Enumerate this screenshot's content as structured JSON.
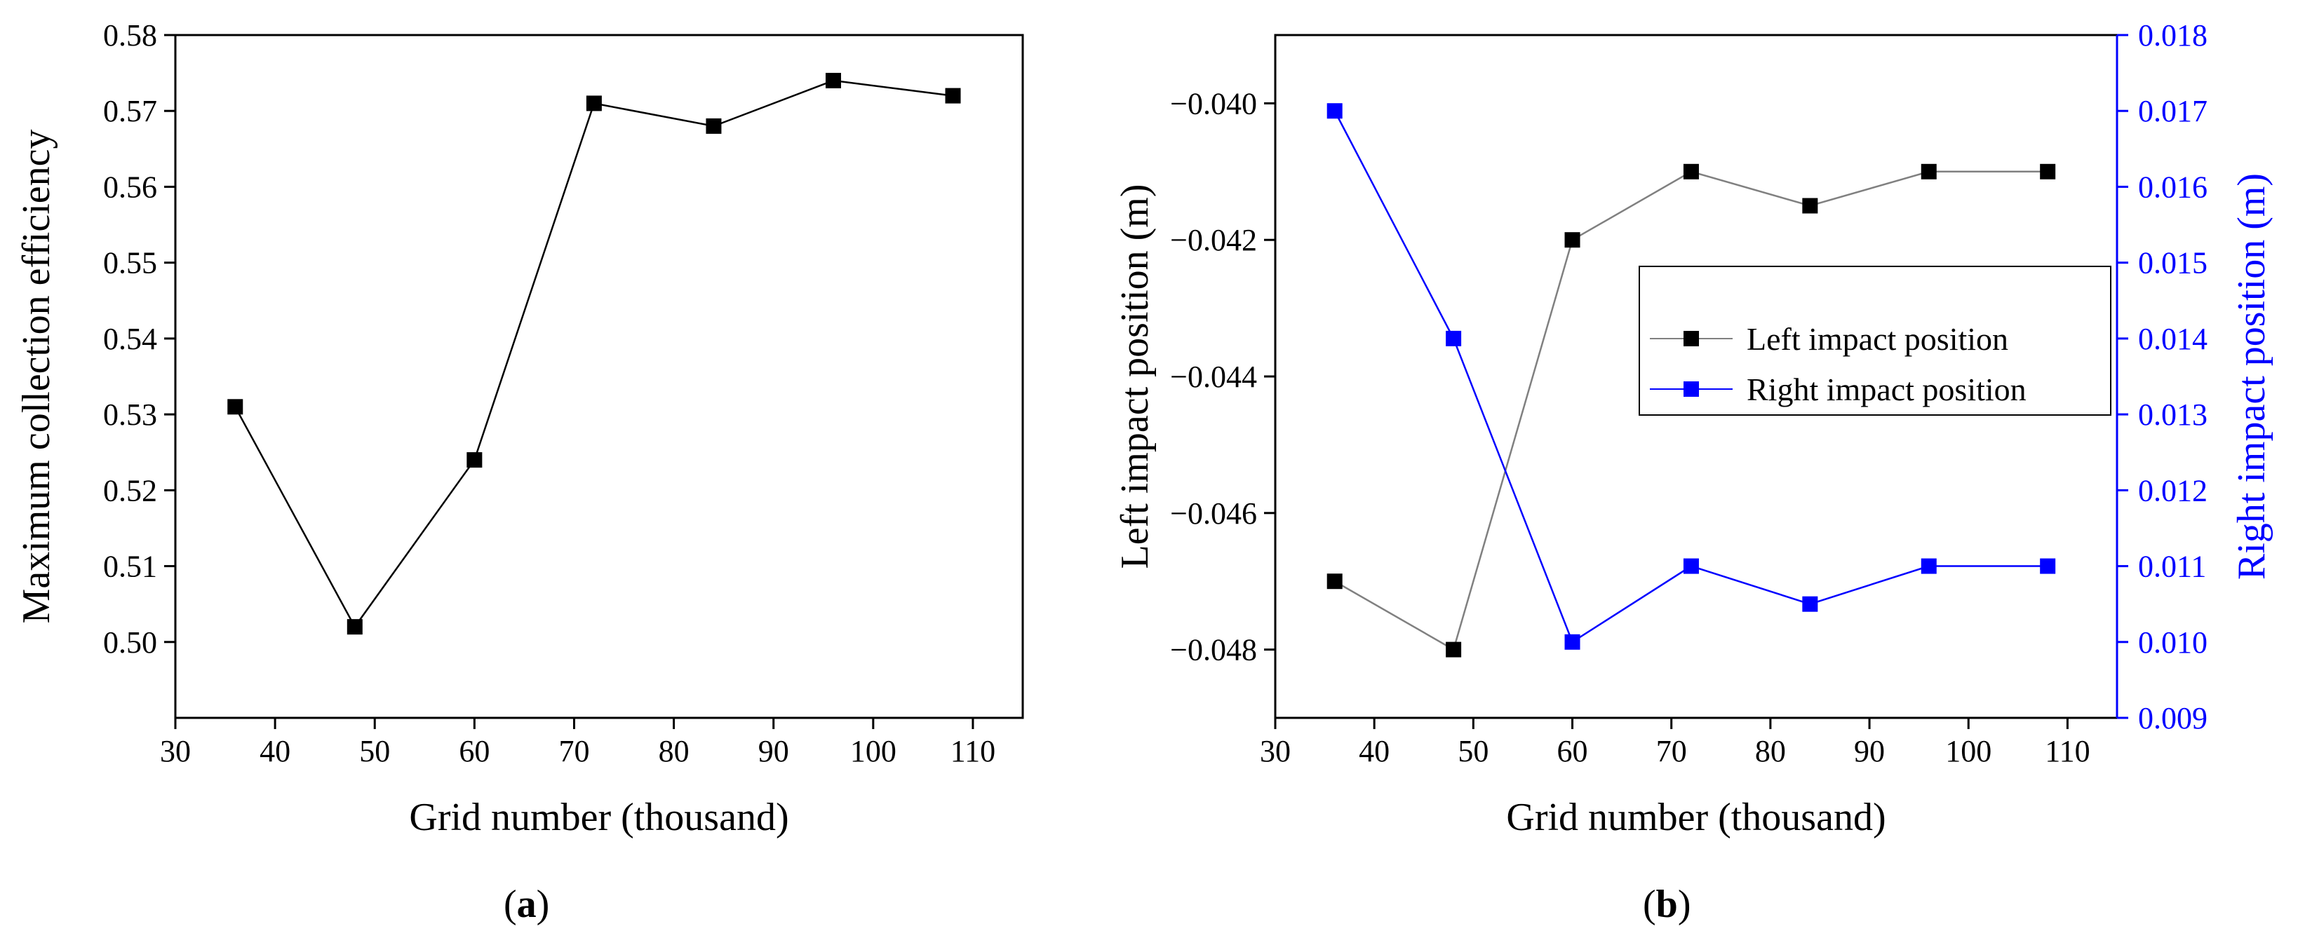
{
  "chart_data": [
    {
      "type": "line",
      "panel_label": "a",
      "title": "",
      "xlabel": "Grid number (thousand)",
      "ylabel": "Maximum collection efficiency",
      "xlim": [
        30,
        115
      ],
      "ylim": [
        0.49,
        0.58
      ],
      "xticks": [
        "30",
        "40",
        "50",
        "60",
        "70",
        "80",
        "90",
        "100",
        "110"
      ],
      "yticks": [
        "0.50",
        "0.51",
        "0.52",
        "0.53",
        "0.54",
        "0.55",
        "0.56",
        "0.57",
        "0.58"
      ],
      "grid": false,
      "series": [
        {
          "name": "Maximum collection efficiency",
          "color": "#000000",
          "marker": "square",
          "x": [
            36,
            48,
            60,
            72,
            84,
            96,
            108
          ],
          "y": [
            0.531,
            0.502,
            0.524,
            0.571,
            0.568,
            0.574,
            0.572
          ]
        }
      ]
    },
    {
      "type": "line",
      "panel_label": "b",
      "title": "",
      "xlabel": "Grid number (thousand)",
      "ylabel": "Left impact position (m)",
      "ylabel_right": "Right impact position (m)",
      "xlim": [
        30,
        115
      ],
      "ylim": [
        -0.049,
        -0.039
      ],
      "ylim_right": [
        0.009,
        0.018
      ],
      "xticks": [
        "30",
        "40",
        "50",
        "60",
        "70",
        "80",
        "90",
        "100",
        "110"
      ],
      "yticks": [
        "−0.048",
        "−0.046",
        "−0.044",
        "−0.042",
        "−0.040"
      ],
      "yticks_right": [
        "0.009",
        "0.010",
        "0.011",
        "0.012",
        "0.013",
        "0.014",
        "0.015",
        "0.016",
        "0.017",
        "0.018"
      ],
      "grid": false,
      "legend_position": "center-right",
      "series": [
        {
          "name": "Left impact position",
          "axis": "left",
          "color": "#000000",
          "line_color": "#808080",
          "marker": "square",
          "x": [
            36,
            48,
            60,
            72,
            84,
            96,
            108
          ],
          "y": [
            -0.047,
            -0.048,
            -0.042,
            -0.041,
            -0.0415,
            -0.041,
            -0.041
          ]
        },
        {
          "name": "Right impact position",
          "axis": "right",
          "color": "#0000ff",
          "line_color": "#0000ff",
          "marker": "square",
          "x": [
            36,
            48,
            60,
            72,
            84,
            96,
            108
          ],
          "y": [
            0.017,
            0.014,
            0.01,
            0.011,
            0.0105,
            0.011,
            0.011
          ]
        }
      ]
    }
  ]
}
